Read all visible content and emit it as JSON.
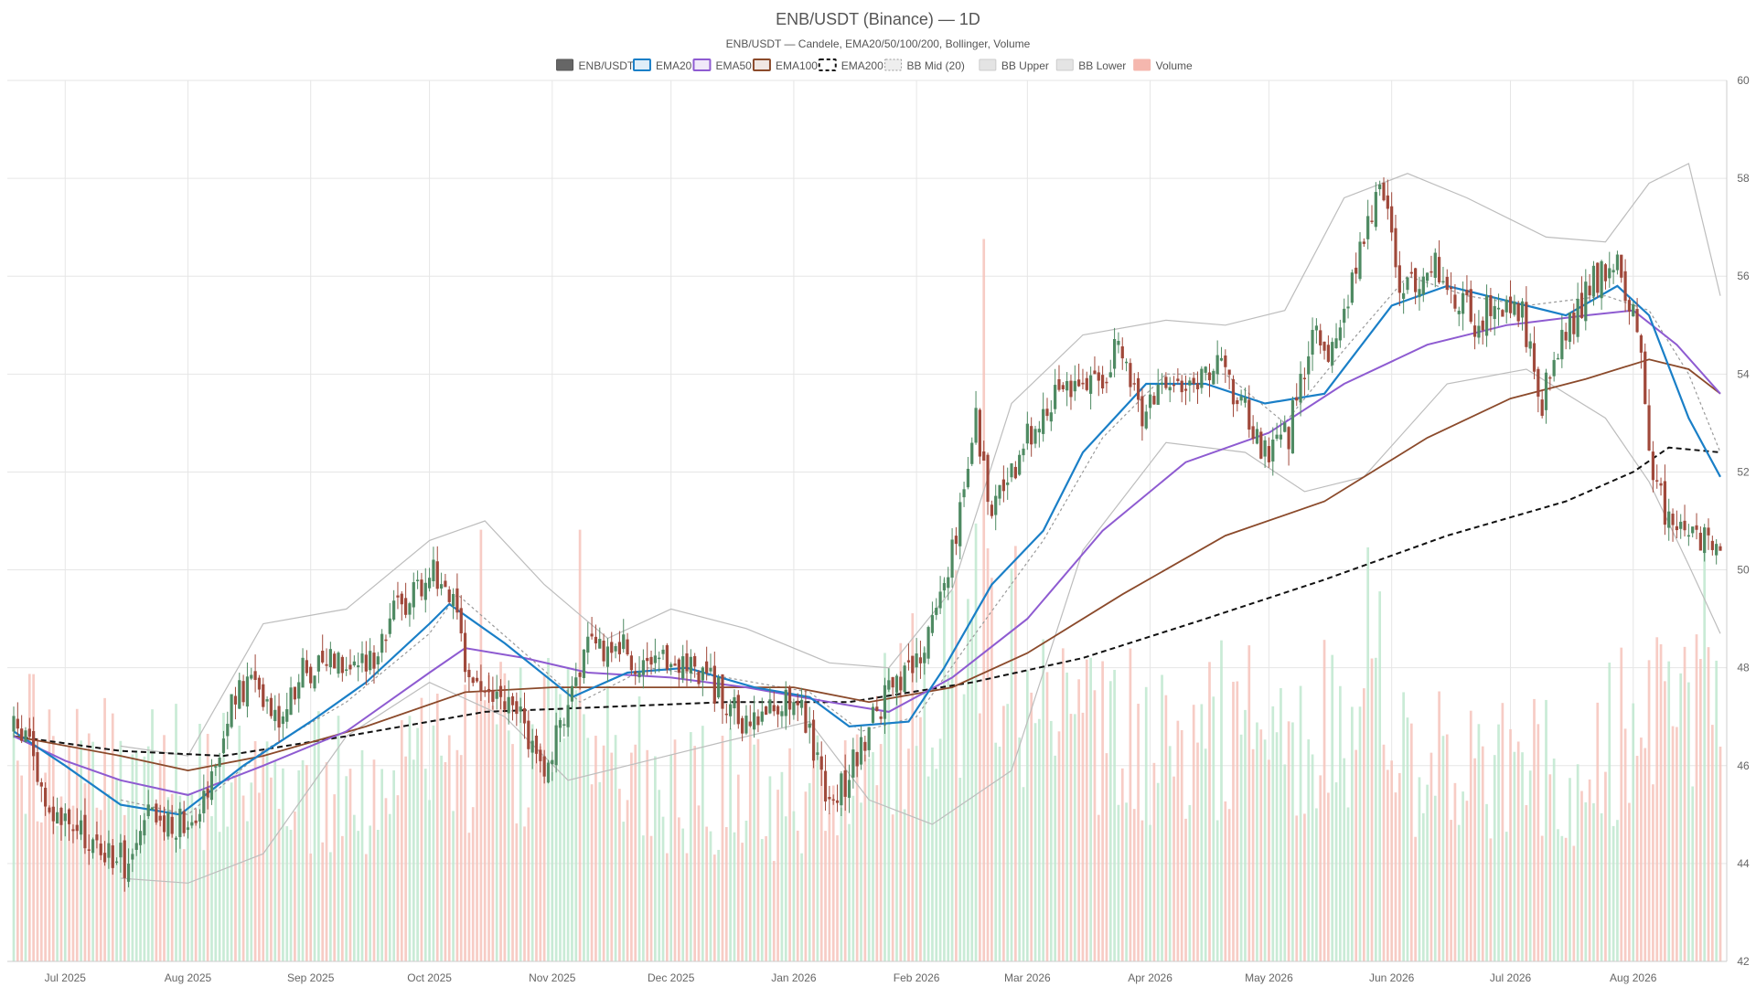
{
  "chart_data": {
    "type": "candlestick",
    "title": "ENB/USDT (Binance) — 1D",
    "subtitle": "ENB/USDT — Candele, EMA20/50/100/200, Bollinger, Volume",
    "legend": {
      "placement": "top-center",
      "items": [
        {
          "label": "ENB/USDT",
          "kind": "candle",
          "color": "#666666"
        },
        {
          "label": "EMA20",
          "kind": "line",
          "color": "#1a7fc7"
        },
        {
          "label": "EMA50",
          "kind": "line",
          "color": "#8e5bd1"
        },
        {
          "label": "EMA100",
          "kind": "line",
          "color": "#8b4a2b"
        },
        {
          "label": "EMA200",
          "kind": "dashed",
          "color": "#111111"
        },
        {
          "label": "BB Mid (20)",
          "kind": "dotted",
          "color": "#999999"
        },
        {
          "label": "BB Upper",
          "kind": "band",
          "color": "#bbbbbb"
        },
        {
          "label": "BB Lower",
          "kind": "band",
          "color": "#bbbbbb"
        },
        {
          "label": "Volume",
          "kind": "volume",
          "color": "#f5b7ae"
        }
      ]
    },
    "x_ticks": [
      "Jul 2025",
      "Aug 2025",
      "Sep 2025",
      "Oct 2025",
      "Nov 2025",
      "Dec 2025",
      "Jan 2026",
      "Feb 2026",
      "Mar 2026",
      "Apr 2026",
      "May 2026",
      "Jun 2026",
      "Jul 2026",
      "Aug 2026"
    ],
    "x_range": [
      "2025-06-18",
      "2026-08-23"
    ],
    "ylim": [
      42,
      60
    ],
    "y_ticks": [
      42,
      44,
      46,
      48,
      50,
      52,
      54,
      56,
      58,
      60
    ],
    "y_axis_side": "right",
    "grid": true,
    "colors": {
      "up": "#4e8a62",
      "down": "#a0483a",
      "vol_up": "#bfe8cf",
      "vol_down": "#f6c3bb"
    },
    "price_path": [
      [
        "2025-06-18",
        46.7
      ],
      [
        "2025-06-22",
        46.6
      ],
      [
        "2025-06-26",
        45.0
      ],
      [
        "2025-07-01",
        44.8
      ],
      [
        "2025-07-06",
        44.5
      ],
      [
        "2025-07-12",
        44.2
      ],
      [
        "2025-07-17",
        44.0
      ],
      [
        "2025-07-22",
        44.9
      ],
      [
        "2025-07-28",
        44.8
      ],
      [
        "2025-08-02",
        45.0
      ],
      [
        "2025-08-07",
        45.8
      ],
      [
        "2025-08-12",
        47.2
      ],
      [
        "2025-08-18",
        47.8
      ],
      [
        "2025-08-24",
        47.0
      ],
      [
        "2025-08-30",
        47.9
      ],
      [
        "2025-09-07",
        48.3
      ],
      [
        "2025-09-15",
        48.0
      ],
      [
        "2025-09-21",
        49.0
      ],
      [
        "2025-09-27",
        49.6
      ],
      [
        "2025-10-02",
        50.0
      ],
      [
        "2025-10-06",
        49.6
      ],
      [
        "2025-10-10",
        48.0
      ],
      [
        "2025-10-16",
        47.4
      ],
      [
        "2025-10-24",
        47.0
      ],
      [
        "2025-10-31",
        45.8
      ],
      [
        "2025-11-05",
        47.5
      ],
      [
        "2025-11-10",
        48.3
      ],
      [
        "2025-11-18",
        48.5
      ],
      [
        "2025-11-25",
        47.8
      ],
      [
        "2025-12-02",
        48.2
      ],
      [
        "2025-12-08",
        48.0
      ],
      [
        "2025-12-15",
        47.3
      ],
      [
        "2025-12-20",
        46.7
      ],
      [
        "2025-12-26",
        47.2
      ],
      [
        "2026-01-02",
        47.5
      ],
      [
        "2026-01-07",
        46.0
      ],
      [
        "2026-01-11",
        45.2
      ],
      [
        "2026-01-17",
        46.2
      ],
      [
        "2026-01-23",
        47.3
      ],
      [
        "2026-01-30",
        47.8
      ],
      [
        "2026-02-04",
        48.6
      ],
      [
        "2026-02-08",
        49.8
      ],
      [
        "2026-02-12",
        51.2
      ],
      [
        "2026-02-16",
        53.1
      ],
      [
        "2026-02-20",
        51.2
      ],
      [
        "2026-02-26",
        52.1
      ],
      [
        "2026-03-04",
        53.2
      ],
      [
        "2026-03-10",
        53.9
      ],
      [
        "2026-03-17",
        53.7
      ],
      [
        "2026-03-24",
        54.5
      ],
      [
        "2026-03-30",
        53.2
      ],
      [
        "2026-04-06",
        54.0
      ],
      [
        "2026-04-12",
        53.8
      ],
      [
        "2026-04-18",
        54.1
      ],
      [
        "2026-04-24",
        53.4
      ],
      [
        "2026-04-30",
        52.3
      ],
      [
        "2026-05-06",
        52.8
      ],
      [
        "2026-05-12",
        54.8
      ],
      [
        "2026-05-18",
        54.5
      ],
      [
        "2026-05-24",
        56.6
      ],
      [
        "2026-05-29",
        57.9
      ],
      [
        "2026-06-04",
        55.5
      ],
      [
        "2026-06-10",
        56.3
      ],
      [
        "2026-06-16",
        55.8
      ],
      [
        "2026-06-22",
        55.0
      ],
      [
        "2026-06-28",
        55.5
      ],
      [
        "2026-07-04",
        55.2
      ],
      [
        "2026-07-09",
        53.5
      ],
      [
        "2026-07-15",
        54.8
      ],
      [
        "2026-07-21",
        55.8
      ],
      [
        "2026-07-27",
        56.3
      ],
      [
        "2026-08-02",
        55.2
      ],
      [
        "2026-08-05",
        52.2
      ],
      [
        "2026-08-09",
        51.2
      ],
      [
        "2026-08-15",
        50.9
      ],
      [
        "2026-08-19",
        50.6
      ],
      [
        "2026-08-23",
        50.3
      ]
    ],
    "ema20_path": [
      [
        "2025-06-18",
        46.7
      ],
      [
        "2025-07-01",
        46.0
      ],
      [
        "2025-07-15",
        45.2
      ],
      [
        "2025-07-30",
        45.0
      ],
      [
        "2025-08-15",
        46.0
      ],
      [
        "2025-09-01",
        46.9
      ],
      [
        "2025-09-15",
        47.7
      ],
      [
        "2025-10-01",
        48.9
      ],
      [
        "2025-10-06",
        49.3
      ],
      [
        "2025-10-20",
        48.5
      ],
      [
        "2025-11-06",
        47.4
      ],
      [
        "2025-11-20",
        47.9
      ],
      [
        "2025-12-05",
        48.0
      ],
      [
        "2025-12-22",
        47.6
      ],
      [
        "2026-01-05",
        47.4
      ],
      [
        "2026-01-15",
        46.8
      ],
      [
        "2026-01-30",
        46.9
      ],
      [
        "2026-02-08",
        48.0
      ],
      [
        "2026-02-20",
        49.7
      ],
      [
        "2026-03-05",
        50.8
      ],
      [
        "2026-03-15",
        52.4
      ],
      [
        "2026-03-31",
        53.8
      ],
      [
        "2026-04-15",
        53.8
      ],
      [
        "2026-04-30",
        53.4
      ],
      [
        "2026-05-15",
        53.6
      ],
      [
        "2026-06-01",
        55.4
      ],
      [
        "2026-06-15",
        55.8
      ],
      [
        "2026-06-30",
        55.5
      ],
      [
        "2026-07-15",
        55.2
      ],
      [
        "2026-07-28",
        55.8
      ],
      [
        "2026-08-05",
        55.2
      ],
      [
        "2026-08-15",
        53.1
      ],
      [
        "2026-08-23",
        51.9
      ]
    ],
    "ema50_path": [
      [
        "2025-06-18",
        46.6
      ],
      [
        "2025-07-01",
        46.1
      ],
      [
        "2025-07-15",
        45.7
      ],
      [
        "2025-08-01",
        45.4
      ],
      [
        "2025-08-20",
        46.0
      ],
      [
        "2025-09-10",
        46.7
      ],
      [
        "2025-10-01",
        47.9
      ],
      [
        "2025-10-10",
        48.4
      ],
      [
        "2025-10-25",
        48.2
      ],
      [
        "2025-11-10",
        47.9
      ],
      [
        "2025-12-01",
        47.8
      ],
      [
        "2025-12-20",
        47.6
      ],
      [
        "2026-01-10",
        47.3
      ],
      [
        "2026-01-25",
        47.1
      ],
      [
        "2026-02-10",
        47.8
      ],
      [
        "2026-03-01",
        49.0
      ],
      [
        "2026-03-20",
        50.8
      ],
      [
        "2026-04-10",
        52.2
      ],
      [
        "2026-05-01",
        52.8
      ],
      [
        "2026-05-20",
        53.8
      ],
      [
        "2026-06-10",
        54.6
      ],
      [
        "2026-06-30",
        55.0
      ],
      [
        "2026-07-20",
        55.2
      ],
      [
        "2026-08-01",
        55.3
      ],
      [
        "2026-08-12",
        54.6
      ],
      [
        "2026-08-23",
        53.6
      ]
    ],
    "ema100_path": [
      [
        "2025-06-18",
        46.6
      ],
      [
        "2025-07-15",
        46.2
      ],
      [
        "2025-08-01",
        45.9
      ],
      [
        "2025-08-20",
        46.2
      ],
      [
        "2025-09-15",
        46.8
      ],
      [
        "2025-10-10",
        47.5
      ],
      [
        "2025-11-01",
        47.6
      ],
      [
        "2025-12-01",
        47.6
      ],
      [
        "2026-01-01",
        47.6
      ],
      [
        "2026-01-20",
        47.3
      ],
      [
        "2026-02-10",
        47.6
      ],
      [
        "2026-03-01",
        48.3
      ],
      [
        "2026-03-25",
        49.5
      ],
      [
        "2026-04-20",
        50.7
      ],
      [
        "2026-05-15",
        51.4
      ],
      [
        "2026-06-10",
        52.7
      ],
      [
        "2026-07-01",
        53.5
      ],
      [
        "2026-07-20",
        53.9
      ],
      [
        "2026-08-05",
        54.3
      ],
      [
        "2026-08-15",
        54.1
      ],
      [
        "2026-08-23",
        53.6
      ]
    ],
    "ema200_path": [
      [
        "2025-06-18",
        46.6
      ],
      [
        "2025-07-15",
        46.3
      ],
      [
        "2025-08-10",
        46.2
      ],
      [
        "2025-09-10",
        46.6
      ],
      [
        "2025-10-15",
        47.1
      ],
      [
        "2025-11-15",
        47.2
      ],
      [
        "2025-12-15",
        47.3
      ],
      [
        "2026-01-15",
        47.3
      ],
      [
        "2026-02-15",
        47.7
      ],
      [
        "2026-03-15",
        48.2
      ],
      [
        "2026-04-15",
        49.0
      ],
      [
        "2026-05-15",
        49.8
      ],
      [
        "2026-06-15",
        50.7
      ],
      [
        "2026-07-15",
        51.4
      ],
      [
        "2026-08-01",
        52.0
      ],
      [
        "2026-08-10",
        52.5
      ],
      [
        "2026-08-23",
        52.4
      ]
    ],
    "bb_mid_path": [
      [
        "2025-07-15",
        45.3
      ],
      [
        "2025-08-01",
        45.0
      ],
      [
        "2025-08-20",
        46.3
      ],
      [
        "2025-09-10",
        47.3
      ],
      [
        "2025-10-01",
        48.7
      ],
      [
        "2025-10-08",
        49.5
      ],
      [
        "2025-10-25",
        48.3
      ],
      [
        "2025-11-08",
        47.3
      ],
      [
        "2025-11-25",
        48.0
      ],
      [
        "2025-12-15",
        47.8
      ],
      [
        "2026-01-05",
        47.5
      ],
      [
        "2026-01-18",
        46.7
      ],
      [
        "2026-02-01",
        47.0
      ],
      [
        "2026-02-15",
        48.6
      ],
      [
        "2026-03-05",
        50.6
      ],
      [
        "2026-03-20",
        52.7
      ],
      [
        "2026-04-05",
        54.0
      ],
      [
        "2026-04-20",
        54.0
      ],
      [
        "2026-05-05",
        53.0
      ],
      [
        "2026-05-20",
        54.5
      ],
      [
        "2026-06-05",
        56.0
      ],
      [
        "2026-06-20",
        55.6
      ],
      [
        "2026-07-05",
        55.4
      ],
      [
        "2026-07-25",
        55.6
      ],
      [
        "2026-08-05",
        55.3
      ],
      [
        "2026-08-15",
        54.0
      ],
      [
        "2026-08-23",
        52.4
      ]
    ],
    "bb_upper_path": [
      [
        "2025-07-15",
        46.4
      ],
      [
        "2025-08-01",
        46.2
      ],
      [
        "2025-08-20",
        48.9
      ],
      [
        "2025-09-10",
        49.2
      ],
      [
        "2025-10-01",
        50.6
      ],
      [
        "2025-10-15",
        51.0
      ],
      [
        "2025-10-30",
        49.7
      ],
      [
        "2025-11-15",
        48.6
      ],
      [
        "2025-12-01",
        49.2
      ],
      [
        "2025-12-20",
        48.8
      ],
      [
        "2026-01-10",
        48.1
      ],
      [
        "2026-01-25",
        48.0
      ],
      [
        "2026-02-10",
        49.6
      ],
      [
        "2026-02-25",
        53.4
      ],
      [
        "2026-03-15",
        54.8
      ],
      [
        "2026-04-05",
        55.1
      ],
      [
        "2026-04-20",
        55.0
      ],
      [
        "2026-05-05",
        55.3
      ],
      [
        "2026-05-20",
        57.6
      ],
      [
        "2026-06-05",
        58.1
      ],
      [
        "2026-06-20",
        57.6
      ],
      [
        "2026-07-10",
        56.8
      ],
      [
        "2026-07-25",
        56.7
      ],
      [
        "2026-08-05",
        57.9
      ],
      [
        "2026-08-15",
        58.3
      ],
      [
        "2026-08-23",
        55.6
      ]
    ],
    "bb_lower_path": [
      [
        "2025-07-15",
        43.7
      ],
      [
        "2025-08-01",
        43.6
      ],
      [
        "2025-08-20",
        44.2
      ],
      [
        "2025-09-10",
        46.6
      ],
      [
        "2025-10-01",
        47.7
      ],
      [
        "2025-10-20",
        47.0
      ],
      [
        "2025-11-05",
        45.7
      ],
      [
        "2025-11-25",
        46.1
      ],
      [
        "2025-12-15",
        46.5
      ],
      [
        "2026-01-05",
        46.9
      ],
      [
        "2026-01-20",
        45.3
      ],
      [
        "2026-02-05",
        44.8
      ],
      [
        "2026-02-25",
        45.9
      ],
      [
        "2026-03-15",
        50.4
      ],
      [
        "2026-04-05",
        52.6
      ],
      [
        "2026-04-25",
        52.4
      ],
      [
        "2026-05-10",
        51.6
      ],
      [
        "2026-05-25",
        51.9
      ],
      [
        "2026-06-15",
        53.8
      ],
      [
        "2026-07-05",
        54.1
      ],
      [
        "2026-07-25",
        53.1
      ],
      [
        "2026-08-05",
        51.8
      ],
      [
        "2026-08-15",
        50.1
      ],
      [
        "2026-08-23",
        48.7
      ]
    ],
    "volume_profile": [
      [
        "2025-06-18",
        0.26
      ],
      [
        "2025-07-15",
        0.24
      ],
      [
        "2025-08-10",
        0.22
      ],
      [
        "2025-09-15",
        0.22
      ],
      [
        "2025-10-10",
        0.25
      ],
      [
        "2025-11-01",
        0.28
      ],
      [
        "2025-12-01",
        0.22
      ],
      [
        "2026-01-05",
        0.2
      ],
      [
        "2026-02-01",
        0.32
      ],
      [
        "2026-02-20",
        0.4
      ],
      [
        "2026-03-15",
        0.28
      ],
      [
        "2026-04-15",
        0.28
      ],
      [
        "2026-05-15",
        0.3
      ],
      [
        "2026-06-15",
        0.24
      ],
      [
        "2026-07-15",
        0.23
      ],
      [
        "2026-08-05",
        0.3
      ],
      [
        "2026-08-23",
        0.28
      ]
    ],
    "volume_spikes": [
      [
        "2025-10-14",
        0.49
      ],
      [
        "2025-11-08",
        0.49
      ],
      [
        "2026-02-18",
        0.82
      ],
      [
        "2026-02-23",
        0.29
      ],
      [
        "2026-05-26",
        0.47
      ],
      [
        "2026-05-29",
        0.42
      ],
      [
        "2026-08-08",
        0.36
      ],
      [
        "2026-08-19",
        0.48
      ]
    ],
    "volume_max_fraction_of_panel": 0.82
  }
}
